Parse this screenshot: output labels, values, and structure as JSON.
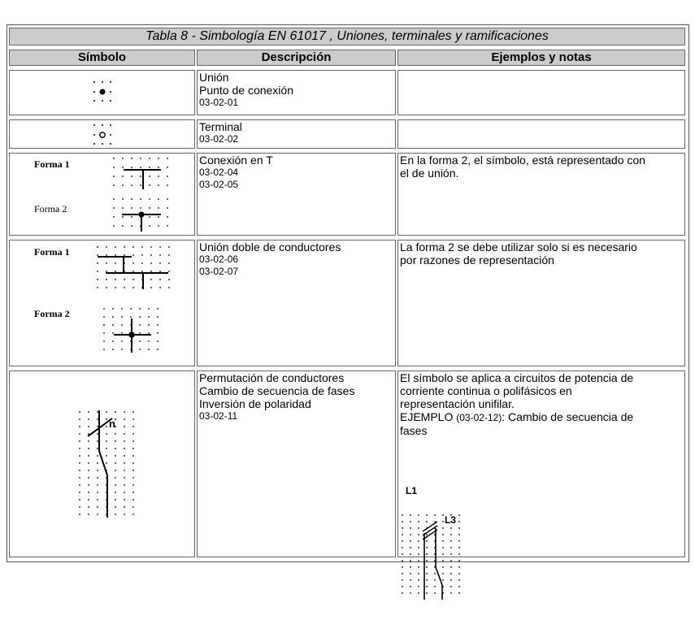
{
  "table": {
    "title": "Tabla 8 - Simbología EN 61017 , Uniones, terminales y ramificaciones",
    "headers": [
      "Símbolo",
      "Descripción",
      "Ejemplos y notas"
    ]
  },
  "rows": [
    {
      "description": [
        "Unión",
        "Punto de conexión"
      ],
      "codes": [
        "03-02-01"
      ],
      "notes": [],
      "symbol": "junction-dot"
    },
    {
      "description": [
        "Terminal"
      ],
      "codes": [
        "03-02-02"
      ],
      "notes": [],
      "symbol": "terminal-circle"
    },
    {
      "description": [
        "Conexión en T"
      ],
      "codes": [
        "03-02-04",
        "03-02-05"
      ],
      "notes": [
        "En la forma 2, el símbolo,  está representado con",
        "el de unión."
      ],
      "forms": [
        "Forma 1",
        "Forma 2"
      ],
      "symbol": "t-connection"
    },
    {
      "description": [
        "Unión doble de conductores"
      ],
      "codes": [
        "03-02-06",
        "03-02-07"
      ],
      "notes": [
        "La forma 2 se debe utilizar solo si es necesario",
        "por razones de representación"
      ],
      "forms": [
        "Forma 1",
        "Forma 2"
      ],
      "symbol": "double-junction"
    },
    {
      "description": [
        "Permutación de conductores",
        "Cambio de secuencia de fases",
        "Inversión de polaridad"
      ],
      "codes": [
        "03-02-11"
      ],
      "notes": [
        "El símbolo se aplica a circuitos de potencia de",
        "corriente continua o polifásicos en",
        "representación unifilar."
      ],
      "example_prefix": "EJEMPLO",
      "example_code": "(03-02-12)",
      "example_text": ": Cambio de secuencia de",
      "example_text2": "fases",
      "symbol_label": "n",
      "example_labels": [
        "L1",
        "L3"
      ],
      "symbol": "conductor-permutation"
    }
  ]
}
